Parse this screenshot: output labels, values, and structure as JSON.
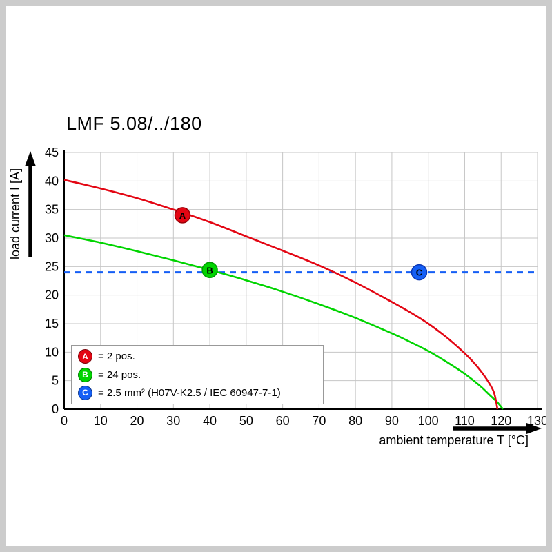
{
  "chart_data": {
    "type": "line",
    "title": "LMF 5.08/../180",
    "xlabel": "ambient temperature T [°C]",
    "ylabel": "load current I [A]",
    "xlim": [
      0,
      130
    ],
    "ylim": [
      0,
      45
    ],
    "x_ticks": [
      0,
      10,
      20,
      30,
      40,
      50,
      60,
      70,
      80,
      90,
      100,
      110,
      120,
      130
    ],
    "y_ticks": [
      0,
      5,
      10,
      15,
      20,
      25,
      30,
      35,
      40,
      45
    ],
    "grid": true,
    "colors": {
      "grid": "#c6c6c6",
      "axis": "#000000",
      "red": "#e30613",
      "green": "#00d400",
      "blue": "#155ff5"
    },
    "series": [
      {
        "name": "C",
        "label": "= 2.5 mm² (H07V-K2.5 / IEC 60947-7-1)",
        "color": "#155ff5",
        "style": "dashed",
        "points": [
          [
            0,
            24
          ],
          [
            130,
            24
          ]
        ]
      },
      {
        "name": "B",
        "label": "= 24 pos.",
        "color": "#00d400",
        "style": "solid",
        "points": [
          [
            0,
            30.5
          ],
          [
            10,
            29.2
          ],
          [
            20,
            27.7
          ],
          [
            30,
            26.1
          ],
          [
            40,
            24.4
          ],
          [
            50,
            22.6
          ],
          [
            60,
            20.6
          ],
          [
            70,
            18.4
          ],
          [
            80,
            16.0
          ],
          [
            90,
            13.3
          ],
          [
            95,
            11.8
          ],
          [
            100,
            10.2
          ],
          [
            105,
            8.3
          ],
          [
            110,
            6.2
          ],
          [
            114,
            4.2
          ],
          [
            117,
            2.4
          ],
          [
            119,
            1.2
          ],
          [
            120.5,
            0
          ]
        ]
      },
      {
        "name": "A",
        "label": "= 2 pos.",
        "color": "#e30613",
        "style": "solid",
        "points": [
          [
            0,
            40.2
          ],
          [
            10,
            38.7
          ],
          [
            20,
            37.0
          ],
          [
            30,
            35.0
          ],
          [
            40,
            32.8
          ],
          [
            50,
            30.3
          ],
          [
            60,
            27.8
          ],
          [
            70,
            25.2
          ],
          [
            80,
            22.2
          ],
          [
            90,
            18.8
          ],
          [
            95,
            17.0
          ],
          [
            100,
            15.0
          ],
          [
            105,
            12.6
          ],
          [
            110,
            9.8
          ],
          [
            113,
            7.8
          ],
          [
            116,
            5.3
          ],
          [
            118,
            3.0
          ],
          [
            119,
            0
          ]
        ]
      }
    ],
    "markers": [
      {
        "letter": "A",
        "x": 32.5,
        "y": 34.0,
        "fill": "#e30613",
        "edge": "#9b0008"
      },
      {
        "letter": "B",
        "x": 40.0,
        "y": 24.4,
        "fill": "#00d400",
        "edge": "#009a00"
      },
      {
        "letter": "C",
        "x": 97.5,
        "y": 24.0,
        "fill": "#155ff5",
        "edge": "#0a36b4"
      }
    ],
    "legend": {
      "position": "lower-left",
      "items": [
        {
          "letter": "A",
          "label": "= 2 pos.",
          "color": "#e30613"
        },
        {
          "letter": "B",
          "label": "= 24 pos.",
          "color": "#00d400"
        },
        {
          "letter": "C",
          "label": "= 2.5 mm² (H07V-K2.5 / IEC 60947-7-1)",
          "color": "#155ff5"
        }
      ]
    }
  }
}
